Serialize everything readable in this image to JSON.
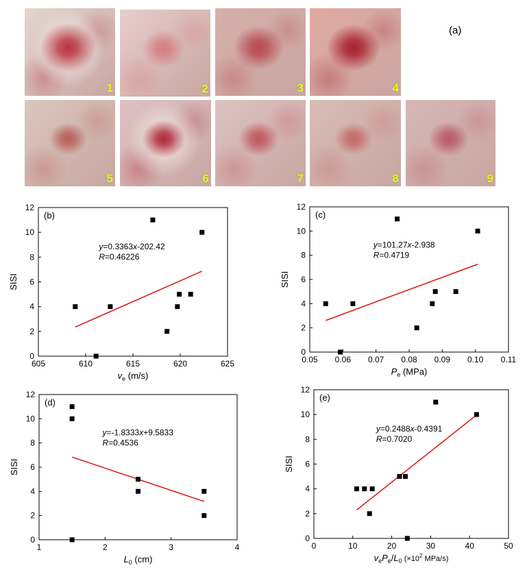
{
  "photos": {
    "panel_label": "(a)",
    "items": [
      {
        "num": "1",
        "tone": "#e3d6d0",
        "lesion": "#b8323f",
        "lesion_size": 0.6,
        "halo": true
      },
      {
        "num": "2",
        "tone": "#e6cdca",
        "lesion": "#d47f84",
        "lesion_size": 0.35,
        "halo": false
      },
      {
        "num": "3",
        "tone": "#d6b0ab",
        "lesion": "#b8484f",
        "lesion_size": 0.5,
        "halo": false
      },
      {
        "num": "4",
        "tone": "#e0aaa2",
        "lesion": "#a8202e",
        "lesion_size": 0.55,
        "halo": false
      },
      {
        "num": "5",
        "tone": "#d9c7bd",
        "lesion": "#b86058",
        "lesion_size": 0.25,
        "halo": false
      },
      {
        "num": "6",
        "tone": "#ddc2c4",
        "lesion": "#b02838",
        "lesion_size": 0.35,
        "halo": true
      },
      {
        "num": "7",
        "tone": "#dcc3c0",
        "lesion": "#c05860",
        "lesion_size": 0.3,
        "halo": false
      },
      {
        "num": "8",
        "tone": "#d8bcb6",
        "lesion": "#c46a6a",
        "lesion_size": 0.25,
        "halo": false
      },
      {
        "num": "9",
        "tone": "#d6b7b4",
        "lesion": "#b85a66",
        "lesion_size": 0.3,
        "halo": false
      }
    ]
  },
  "chart_data": [
    {
      "panel": "(b)",
      "type": "scatter",
      "xlabel_main": "v",
      "xlabel_sub": "e",
      "xlabel_unit": " (m/s)",
      "ylabel": "SISI",
      "xlim": [
        605,
        625
      ],
      "ylim": [
        0,
        12
      ],
      "xticks": [
        605,
        610,
        615,
        620,
        625
      ],
      "yticks": [
        0,
        2,
        4,
        6,
        8,
        10,
        12
      ],
      "points": [
        [
          608.9,
          4
        ],
        [
          611.1,
          0
        ],
        [
          612.6,
          4
        ],
        [
          617.1,
          11
        ],
        [
          618.6,
          2
        ],
        [
          619.7,
          4
        ],
        [
          619.9,
          5
        ],
        [
          621.1,
          5
        ],
        [
          622.3,
          10
        ]
      ],
      "fit": {
        "slope": 0.3363,
        "intercept": -202.42,
        "x_range": [
          608.9,
          622.3
        ]
      },
      "equation": "=0.3363",
      "eq_x": "x",
      "eq_tail": "-202.42",
      "r_value": "=0.46226"
    },
    {
      "panel": "(c)",
      "type": "scatter",
      "xlabel_main": "P",
      "xlabel_sub": "e",
      "xlabel_unit": " (MPa)",
      "ylabel": "SISI",
      "xlim": [
        0.05,
        0.11
      ],
      "ylim": [
        0,
        12
      ],
      "xticks": [
        0.05,
        0.06,
        0.07,
        0.08,
        0.09,
        0.1,
        0.11
      ],
      "xtick_labels": [
        "0.05",
        "0.06",
        "0.07",
        "0.08",
        "0.09",
        "0.10",
        "0.11"
      ],
      "yticks": [
        0,
        2,
        4,
        6,
        8,
        10,
        12
      ],
      "points": [
        [
          0.0548,
          4
        ],
        [
          0.0592,
          0
        ],
        [
          0.063,
          4
        ],
        [
          0.0764,
          11
        ],
        [
          0.0823,
          2
        ],
        [
          0.087,
          4
        ],
        [
          0.0879,
          5
        ],
        [
          0.0941,
          5
        ],
        [
          0.1007,
          10
        ]
      ],
      "fit": {
        "slope": 101.27,
        "intercept": -2.938,
        "x_range": [
          0.0548,
          0.1007
        ]
      },
      "equation": "=101.27",
      "eq_x": "x",
      "eq_tail": "-2.938",
      "r_value": "=0.4719"
    },
    {
      "panel": "(d)",
      "type": "scatter",
      "xlabel_main": "L",
      "xlabel_sub": "0",
      "xlabel_unit": " (cm)",
      "ylabel": "SISI",
      "xlim": [
        1,
        4
      ],
      "ylim": [
        0,
        12
      ],
      "xticks": [
        1,
        2,
        3,
        4
      ],
      "yticks": [
        0,
        2,
        4,
        6,
        8,
        10,
        12
      ],
      "points": [
        [
          1.5,
          11
        ],
        [
          1.5,
          10
        ],
        [
          1.5,
          0
        ],
        [
          2.5,
          5
        ],
        [
          2.5,
          4
        ],
        [
          3.5,
          4
        ],
        [
          3.5,
          2
        ]
      ],
      "fit": {
        "slope": -1.8333,
        "intercept": 9.5833,
        "x_range": [
          1.5,
          3.5
        ]
      },
      "equation": "=-1.8333",
      "eq_x": "x",
      "eq_tail": "+9.5833",
      "r_value": "=0.4536"
    },
    {
      "panel": "(e)",
      "type": "scatter",
      "xlabel_parts": [
        "v",
        "e",
        "P",
        "e",
        "/",
        "L",
        "0",
        " (×10",
        "2",
        " MPa/s)"
      ],
      "ylabel": "SISI",
      "xlim": [
        0,
        50
      ],
      "ylim": [
        0,
        12
      ],
      "xticks": [
        0,
        10,
        20,
        30,
        40,
        50
      ],
      "yticks": [
        0,
        2,
        4,
        6,
        8,
        10,
        12
      ],
      "points": [
        [
          11.0,
          4
        ],
        [
          13.0,
          4
        ],
        [
          14.3,
          2
        ],
        [
          15.0,
          4
        ],
        [
          22.0,
          5
        ],
        [
          23.5,
          5
        ],
        [
          24.0,
          0
        ],
        [
          31.3,
          11
        ],
        [
          41.8,
          10
        ]
      ],
      "fit": {
        "slope": 0.2488,
        "intercept": -0.4391,
        "x_range": [
          11.0,
          41.8
        ]
      },
      "equation": "=0.2488",
      "eq_x": "x",
      "eq_tail": "-0.4391",
      "r_value": "=0.7020"
    }
  ],
  "colors": {
    "fit_line": "#dd1111",
    "marker": "#000000",
    "photo_number": "#f4ee20"
  }
}
